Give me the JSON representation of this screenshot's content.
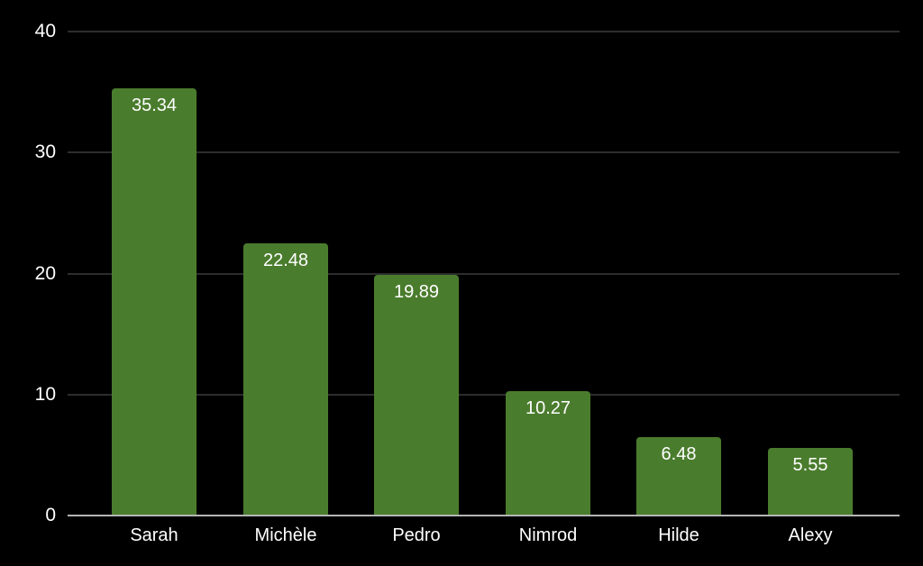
{
  "chart_data": {
    "type": "bar",
    "title": "",
    "xlabel": "",
    "ylabel": "",
    "categories": [
      "Sarah",
      "Michèle",
      "Pedro",
      "Nimrod",
      "Hilde",
      "Alexy"
    ],
    "values": [
      35.34,
      22.48,
      19.89,
      10.27,
      6.48,
      5.55
    ],
    "value_labels": [
      "35.34",
      "22.48",
      "19.89",
      "10.27",
      "6.48",
      "5.55"
    ],
    "ylim": [
      0,
      40
    ],
    "yticks": [
      0,
      10,
      20,
      30,
      40
    ],
    "grid": true,
    "legend": "none",
    "colors": {
      "background": "#000000",
      "bar": "#4a7c2d",
      "gridline": "#2d2d2d",
      "axis_line": "#b5b5b5",
      "text": "#ffffff"
    }
  }
}
